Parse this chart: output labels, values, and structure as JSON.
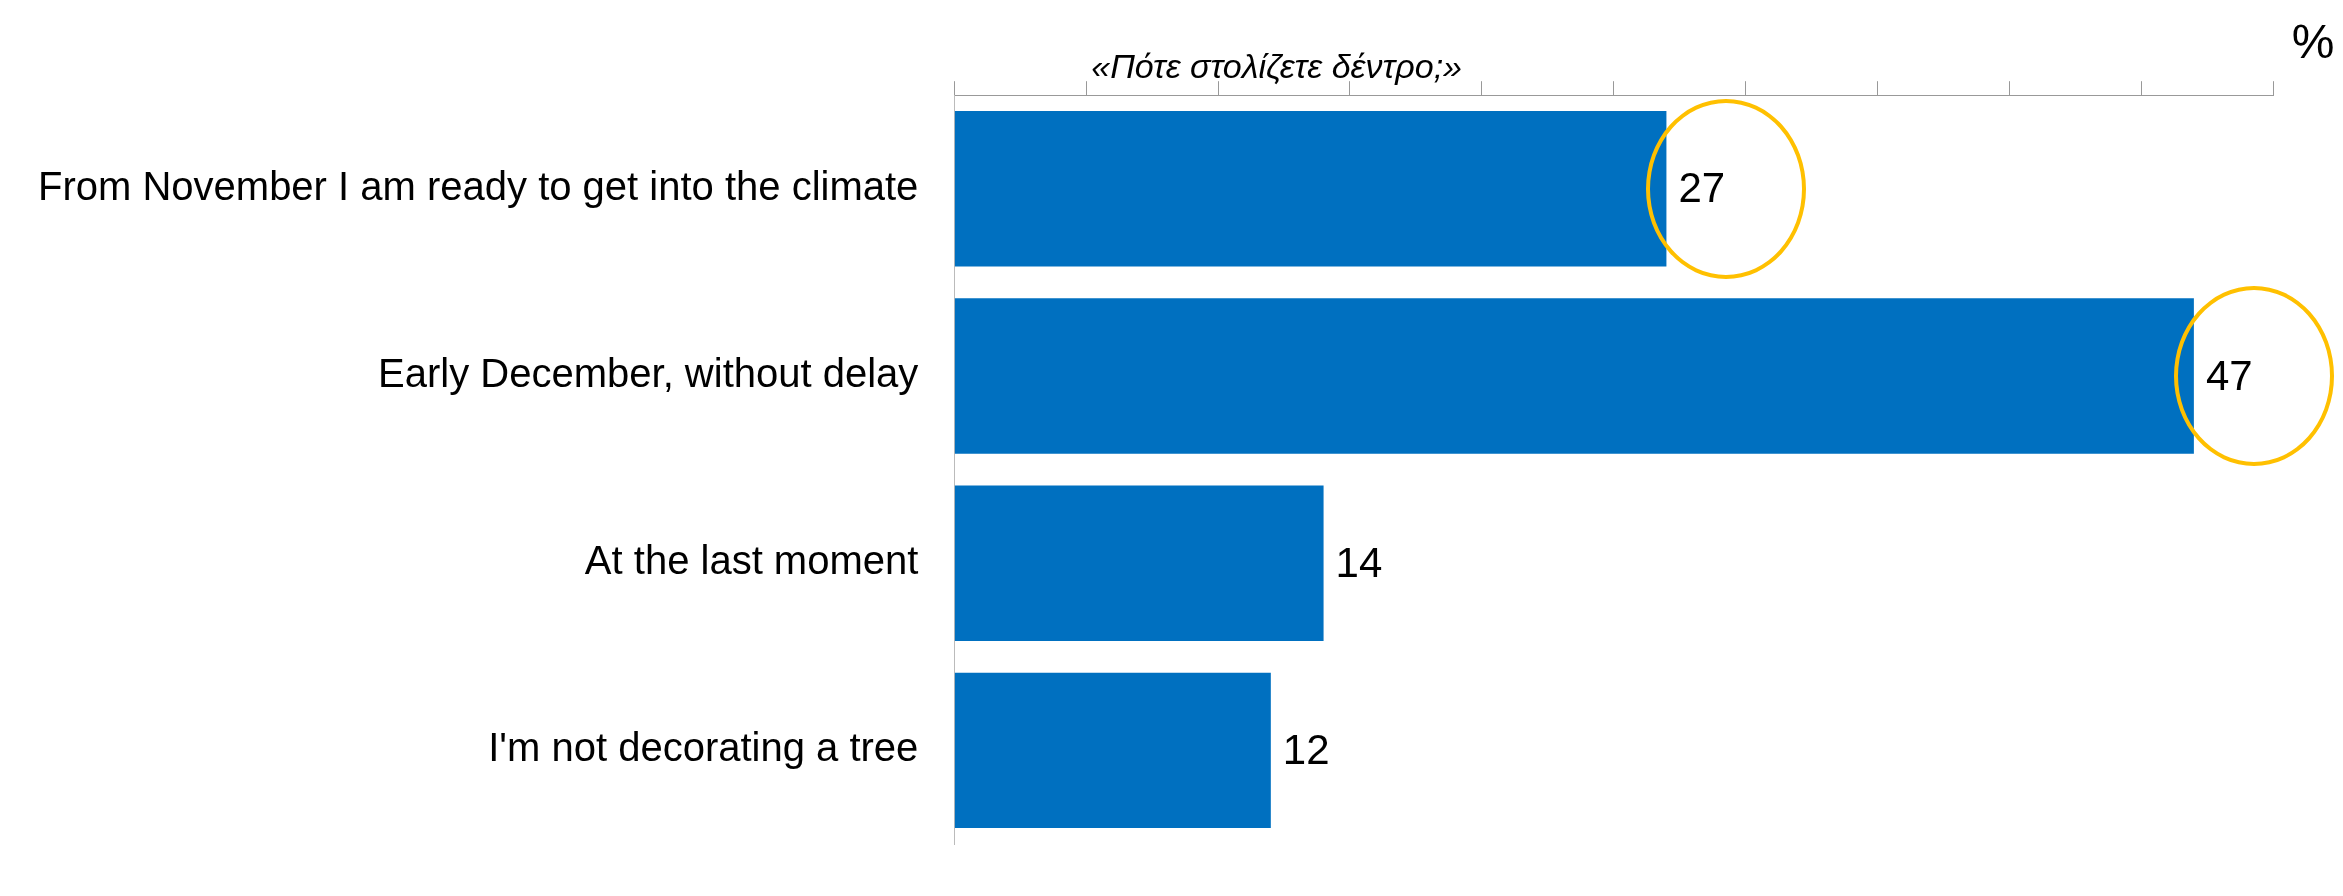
{
  "chart_data": {
    "type": "bar",
    "orientation": "horizontal",
    "title": "«Πότε στολίζετε δέντρο;»",
    "xlabel": "%",
    "categories": [
      "From November I am ready to get into the climate",
      "Early December, without delay",
      "At the last moment",
      "I'm not decorating a tree"
    ],
    "values": [
      27,
      47,
      14,
      12
    ],
    "color": "#0070c0",
    "data_labels": true,
    "grid": false,
    "legend": false,
    "xlim": [
      0,
      50
    ],
    "xticks": [
      {
        "value": 0,
        "label": null
      },
      {
        "value": 5,
        "label": null
      },
      {
        "value": 10,
        "label": null
      },
      {
        "value": 15,
        "label": null
      },
      {
        "value": 20,
        "label": null
      },
      {
        "value": 25,
        "label": null
      },
      {
        "value": 30,
        "label": null
      },
      {
        "value": 35,
        "label": null
      },
      {
        "value": 40,
        "label": null
      },
      {
        "value": 45,
        "label": null
      },
      {
        "value": 50,
        "label": null
      }
    ]
  }
}
